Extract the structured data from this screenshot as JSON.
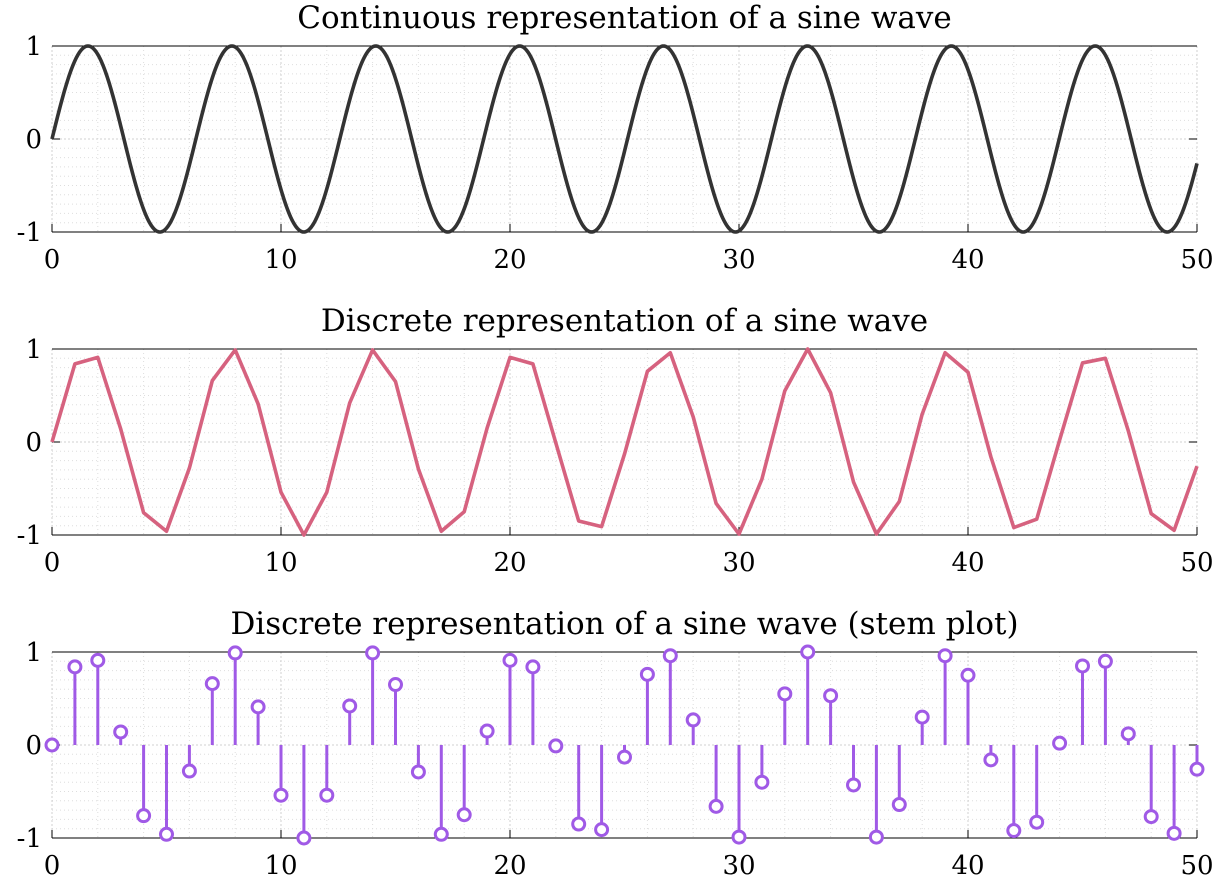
{
  "figure": {
    "background": "#ffffff",
    "axis_color": "#000000",
    "major_grid_color": "#d0d0d0",
    "minor_grid_color": "#dedede"
  },
  "chart_data": [
    {
      "type": "line",
      "title": "Continuous representation of a sine wave",
      "xlabel": "",
      "ylabel": "",
      "xlim": [
        0,
        50
      ],
      "ylim": [
        -1,
        1
      ],
      "xticks": [
        0,
        10,
        20,
        30,
        40,
        50
      ],
      "xtick_labels": [
        "0",
        "10",
        "20",
        "30",
        "40",
        "50"
      ],
      "yticks": [
        -1,
        0,
        1
      ],
      "ytick_labels": [
        "-1",
        "0",
        "1"
      ],
      "grid": true,
      "minor_grid": true,
      "series": [
        {
          "function": "sin(x)",
          "x_range": [
            0,
            50
          ],
          "color": "#333333"
        }
      ]
    },
    {
      "type": "line",
      "title": "Discrete representation of a sine wave",
      "xlabel": "",
      "ylabel": "",
      "xlim": [
        0,
        50
      ],
      "ylim": [
        -1,
        1
      ],
      "xticks": [
        0,
        10,
        20,
        30,
        40,
        50
      ],
      "xtick_labels": [
        "0",
        "10",
        "20",
        "30",
        "40",
        "50"
      ],
      "yticks": [
        -1,
        0,
        1
      ],
      "ytick_labels": [
        "-1",
        "0",
        "1"
      ],
      "grid": true,
      "minor_grid": true,
      "series": [
        {
          "color": "#d6627f",
          "x": [
            0,
            1,
            2,
            3,
            4,
            5,
            6,
            7,
            8,
            9,
            10,
            11,
            12,
            13,
            14,
            15,
            16,
            17,
            18,
            19,
            20,
            21,
            22,
            23,
            24,
            25,
            26,
            27,
            28,
            29,
            30,
            31,
            32,
            33,
            34,
            35,
            36,
            37,
            38,
            39,
            40,
            41,
            42,
            43,
            44,
            45,
            46,
            47,
            48,
            49,
            50
          ],
          "y": [
            0,
            0.84,
            0.91,
            0.14,
            -0.76,
            -0.96,
            -0.28,
            0.66,
            0.99,
            0.41,
            -0.54,
            -1.0,
            -0.54,
            0.42,
            0.99,
            0.65,
            -0.29,
            -0.96,
            -0.75,
            0.15,
            0.91,
            0.84,
            -0.01,
            -0.85,
            -0.91,
            -0.13,
            0.76,
            0.96,
            0.27,
            -0.66,
            -0.99,
            -0.4,
            0.55,
            1.0,
            0.53,
            -0.43,
            -0.99,
            -0.64,
            0.3,
            0.96,
            0.75,
            -0.16,
            -0.92,
            -0.83,
            0.02,
            0.85,
            0.9,
            0.12,
            -0.77,
            -0.95,
            -0.26
          ]
        }
      ]
    },
    {
      "type": "stem",
      "title": "Discrete representation of a sine wave (stem plot)",
      "xlabel": "",
      "ylabel": "",
      "xlim": [
        0,
        50
      ],
      "ylim": [
        -1,
        1
      ],
      "xticks": [
        0,
        10,
        20,
        30,
        40,
        50
      ],
      "xtick_labels": [
        "0",
        "10",
        "20",
        "30",
        "40",
        "50"
      ],
      "yticks": [
        -1,
        0,
        1
      ],
      "ytick_labels": [
        "-1",
        "0",
        "1"
      ],
      "grid": true,
      "minor_grid": true,
      "series": [
        {
          "color": "#a05ae6",
          "marker": "open-circle",
          "x": [
            0,
            1,
            2,
            3,
            4,
            5,
            6,
            7,
            8,
            9,
            10,
            11,
            12,
            13,
            14,
            15,
            16,
            17,
            18,
            19,
            20,
            21,
            22,
            23,
            24,
            25,
            26,
            27,
            28,
            29,
            30,
            31,
            32,
            33,
            34,
            35,
            36,
            37,
            38,
            39,
            40,
            41,
            42,
            43,
            44,
            45,
            46,
            47,
            48,
            49,
            50
          ],
          "y": [
            0,
            0.84,
            0.91,
            0.14,
            -0.76,
            -0.96,
            -0.28,
            0.66,
            0.99,
            0.41,
            -0.54,
            -1.0,
            -0.54,
            0.42,
            0.99,
            0.65,
            -0.29,
            -0.96,
            -0.75,
            0.15,
            0.91,
            0.84,
            -0.01,
            -0.85,
            -0.91,
            -0.13,
            0.76,
            0.96,
            0.27,
            -0.66,
            -0.99,
            -0.4,
            0.55,
            1.0,
            0.53,
            -0.43,
            -0.99,
            -0.64,
            0.3,
            0.96,
            0.75,
            -0.16,
            -0.92,
            -0.83,
            0.02,
            0.85,
            0.9,
            0.12,
            -0.77,
            -0.95,
            -0.26
          ]
        }
      ]
    }
  ]
}
